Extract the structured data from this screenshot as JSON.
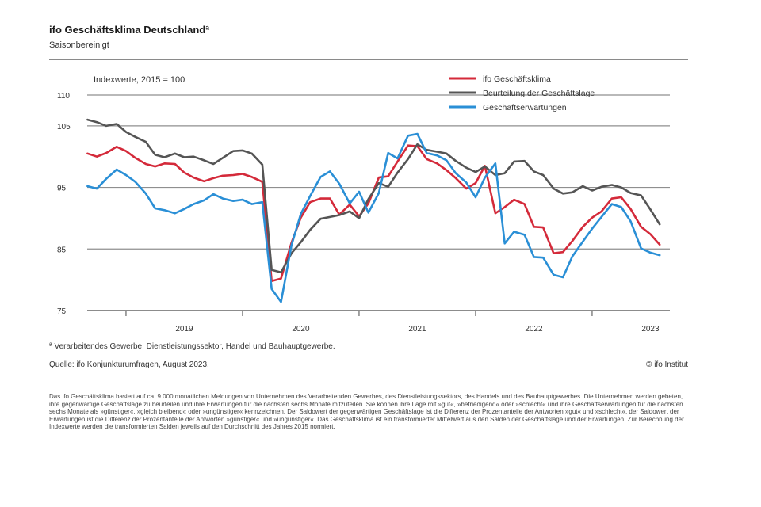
{
  "header": {
    "title": "ifo Geschäftsklima Deutschlandª",
    "subtitle": "Saisonbereinigt"
  },
  "chart_data": {
    "type": "line",
    "index_note": "Indexwerte, 2015 = 100",
    "ylim": [
      75,
      110
    ],
    "yticks": [
      75,
      85,
      95,
      105,
      110
    ],
    "xlim": [
      2018.667,
      2023.667
    ],
    "xticks": [
      "2019",
      "2020",
      "2021",
      "2022",
      "2023"
    ],
    "legend_position": "top-right",
    "grid": true,
    "series": [
      {
        "name": "ifo Geschäftsklima",
        "color": "#d42a3a",
        "points": [
          [
            2018.67,
            100.5
          ],
          [
            2018.75,
            100.0
          ],
          [
            2018.83,
            100.6
          ],
          [
            2018.92,
            101.6
          ],
          [
            2019.0,
            100.9
          ],
          [
            2019.08,
            99.8
          ],
          [
            2019.17,
            98.8
          ],
          [
            2019.25,
            98.4
          ],
          [
            2019.33,
            98.9
          ],
          [
            2019.42,
            98.8
          ],
          [
            2019.5,
            97.4
          ],
          [
            2019.58,
            96.6
          ],
          [
            2019.67,
            96.0
          ],
          [
            2019.75,
            96.5
          ],
          [
            2019.83,
            96.9
          ],
          [
            2019.92,
            97.0
          ],
          [
            2020.0,
            97.2
          ],
          [
            2020.08,
            96.7
          ],
          [
            2020.17,
            95.9
          ],
          [
            2020.25,
            79.8
          ],
          [
            2020.33,
            80.2
          ],
          [
            2020.42,
            86.0
          ],
          [
            2020.5,
            90.1
          ],
          [
            2020.58,
            92.6
          ],
          [
            2020.67,
            93.2
          ],
          [
            2020.75,
            93.2
          ],
          [
            2020.83,
            90.6
          ],
          [
            2020.92,
            92.2
          ],
          [
            2021.0,
            90.3
          ],
          [
            2021.08,
            92.4
          ],
          [
            2021.17,
            96.6
          ],
          [
            2021.25,
            96.8
          ],
          [
            2021.33,
            99.2
          ],
          [
            2021.42,
            101.8
          ],
          [
            2021.5,
            101.7
          ],
          [
            2021.58,
            99.6
          ],
          [
            2021.67,
            98.9
          ],
          [
            2021.75,
            97.8
          ],
          [
            2021.83,
            96.5
          ],
          [
            2021.92,
            94.8
          ],
          [
            2022.0,
            95.7
          ],
          [
            2022.08,
            98.5
          ],
          [
            2022.17,
            90.8
          ],
          [
            2022.25,
            91.8
          ],
          [
            2022.33,
            93.0
          ],
          [
            2022.42,
            92.3
          ],
          [
            2022.5,
            88.6
          ],
          [
            2022.58,
            88.5
          ],
          [
            2022.67,
            84.3
          ],
          [
            2022.75,
            84.5
          ],
          [
            2022.83,
            86.3
          ],
          [
            2022.92,
            88.6
          ],
          [
            2023.0,
            90.1
          ],
          [
            2023.08,
            91.1
          ],
          [
            2023.17,
            93.2
          ],
          [
            2023.25,
            93.4
          ],
          [
            2023.33,
            91.5
          ],
          [
            2023.42,
            88.6
          ],
          [
            2023.5,
            87.4
          ],
          [
            2023.58,
            85.7
          ]
        ]
      },
      {
        "name": "Beurteilung der Geschäftslage",
        "color": "#555555",
        "points": [
          [
            2018.67,
            106.0
          ],
          [
            2018.75,
            105.6
          ],
          [
            2018.83,
            105.0
          ],
          [
            2018.92,
            105.3
          ],
          [
            2019.0,
            104.0
          ],
          [
            2019.08,
            103.2
          ],
          [
            2019.17,
            102.4
          ],
          [
            2019.25,
            100.3
          ],
          [
            2019.33,
            99.9
          ],
          [
            2019.42,
            100.5
          ],
          [
            2019.5,
            99.9
          ],
          [
            2019.58,
            100.0
          ],
          [
            2019.67,
            99.4
          ],
          [
            2019.75,
            98.8
          ],
          [
            2019.83,
            99.8
          ],
          [
            2019.92,
            100.9
          ],
          [
            2020.0,
            101.0
          ],
          [
            2020.08,
            100.5
          ],
          [
            2020.17,
            98.7
          ],
          [
            2020.25,
            81.6
          ],
          [
            2020.33,
            81.2
          ],
          [
            2020.42,
            84.3
          ],
          [
            2020.5,
            86.1
          ],
          [
            2020.58,
            88.1
          ],
          [
            2020.67,
            89.9
          ],
          [
            2020.75,
            90.2
          ],
          [
            2020.83,
            90.5
          ],
          [
            2020.92,
            91.1
          ],
          [
            2021.0,
            90.0
          ],
          [
            2021.08,
            93.1
          ],
          [
            2021.17,
            95.7
          ],
          [
            2021.25,
            95.1
          ],
          [
            2021.33,
            97.4
          ],
          [
            2021.42,
            99.6
          ],
          [
            2021.5,
            102.0
          ],
          [
            2021.58,
            101.1
          ],
          [
            2021.67,
            100.8
          ],
          [
            2021.75,
            100.5
          ],
          [
            2021.83,
            99.3
          ],
          [
            2021.92,
            98.2
          ],
          [
            2022.0,
            97.5
          ],
          [
            2022.08,
            98.4
          ],
          [
            2022.17,
            97.0
          ],
          [
            2022.25,
            97.3
          ],
          [
            2022.33,
            99.2
          ],
          [
            2022.42,
            99.3
          ],
          [
            2022.5,
            97.6
          ],
          [
            2022.58,
            97.0
          ],
          [
            2022.67,
            94.8
          ],
          [
            2022.75,
            94.0
          ],
          [
            2022.83,
            94.2
          ],
          [
            2022.92,
            95.2
          ],
          [
            2023.0,
            94.5
          ],
          [
            2023.08,
            95.1
          ],
          [
            2023.17,
            95.4
          ],
          [
            2023.25,
            95.0
          ],
          [
            2023.33,
            94.1
          ],
          [
            2023.42,
            93.7
          ],
          [
            2023.5,
            91.4
          ],
          [
            2023.58,
            89.0
          ]
        ]
      },
      {
        "name": "Geschäftserwartungen",
        "color": "#2a8fd6",
        "points": [
          [
            2018.67,
            95.2
          ],
          [
            2018.75,
            94.8
          ],
          [
            2018.83,
            96.4
          ],
          [
            2018.92,
            97.9
          ],
          [
            2019.0,
            97.0
          ],
          [
            2019.08,
            95.9
          ],
          [
            2019.17,
            94.0
          ],
          [
            2019.25,
            91.6
          ],
          [
            2019.33,
            91.3
          ],
          [
            2019.42,
            90.8
          ],
          [
            2019.5,
            91.5
          ],
          [
            2019.58,
            92.3
          ],
          [
            2019.67,
            92.9
          ],
          [
            2019.75,
            93.9
          ],
          [
            2019.83,
            93.2
          ],
          [
            2019.92,
            92.8
          ],
          [
            2020.0,
            93.0
          ],
          [
            2020.08,
            92.3
          ],
          [
            2020.17,
            92.6
          ],
          [
            2020.25,
            78.5
          ],
          [
            2020.33,
            76.4
          ],
          [
            2020.42,
            85.6
          ],
          [
            2020.5,
            90.7
          ],
          [
            2020.58,
            93.6
          ],
          [
            2020.67,
            96.7
          ],
          [
            2020.75,
            97.6
          ],
          [
            2020.83,
            95.6
          ],
          [
            2020.92,
            92.4
          ],
          [
            2021.0,
            94.3
          ],
          [
            2021.08,
            90.9
          ],
          [
            2021.17,
            94.1
          ],
          [
            2021.25,
            100.6
          ],
          [
            2021.33,
            99.7
          ],
          [
            2021.42,
            103.4
          ],
          [
            2021.5,
            103.7
          ],
          [
            2021.58,
            100.6
          ],
          [
            2021.67,
            100.2
          ],
          [
            2021.75,
            99.4
          ],
          [
            2021.83,
            97.3
          ],
          [
            2021.92,
            95.8
          ],
          [
            2022.0,
            93.4
          ],
          [
            2022.08,
            96.6
          ],
          [
            2022.17,
            98.9
          ],
          [
            2022.25,
            85.9
          ],
          [
            2022.33,
            87.8
          ],
          [
            2022.42,
            87.3
          ],
          [
            2022.5,
            83.7
          ],
          [
            2022.58,
            83.6
          ],
          [
            2022.67,
            80.8
          ],
          [
            2022.75,
            80.4
          ],
          [
            2022.83,
            83.8
          ],
          [
            2022.92,
            86.2
          ],
          [
            2023.0,
            88.3
          ],
          [
            2023.08,
            90.2
          ],
          [
            2023.17,
            92.3
          ],
          [
            2023.25,
            91.8
          ],
          [
            2023.33,
            89.5
          ],
          [
            2023.42,
            85.1
          ],
          [
            2023.5,
            84.4
          ],
          [
            2023.58,
            84.0
          ]
        ]
      }
    ]
  },
  "footer": {
    "note": "ª Verarbeitendes Gewerbe, Dienstleistungssektor, Handel und Bauhauptgewerbe.",
    "source": "Quelle: ifo Konjunkturumfragen, August 2023.",
    "credit": "© ifo Institut",
    "description": "Das ifo Geschäftsklima basiert auf ca. 9 000 monatlichen Meldungen von Unternehmen des Verarbeitenden Gewerbes, des Dienstleistungssektors, des Handels und des Bauhauptgewerbes. Die Unternehmen werden gebeten, ihre gegenwärtige Geschäftslage zu beurteilen und ihre Erwartungen für die nächsten sechs Monate mitzuteilen. Sie können ihre Lage mit »gut«, »befriedigend« oder »schlecht« und ihre Geschäftserwartungen für die nächsten sechs Monate als »günstiger«, »gleich bleibend« oder »ungünstiger« kennzeichnen. Der Saldowert der gegenwärtigen Geschäftslage ist die Differenz der Prozentanteile der Antworten »gut« und »schlecht«, der Saldowert der Erwartungen ist die Differenz der Prozentanteile der Antworten »günstiger« und »ungünstiger«. Das Geschäftsklima ist ein transformierter Mittelwert aus den Salden der Geschäftslage und der Erwartungen. Zur Berechnung der Indexwerte werden die transformierten Salden jeweils auf den Durchschnitt des Jahres 2015 normiert."
  }
}
